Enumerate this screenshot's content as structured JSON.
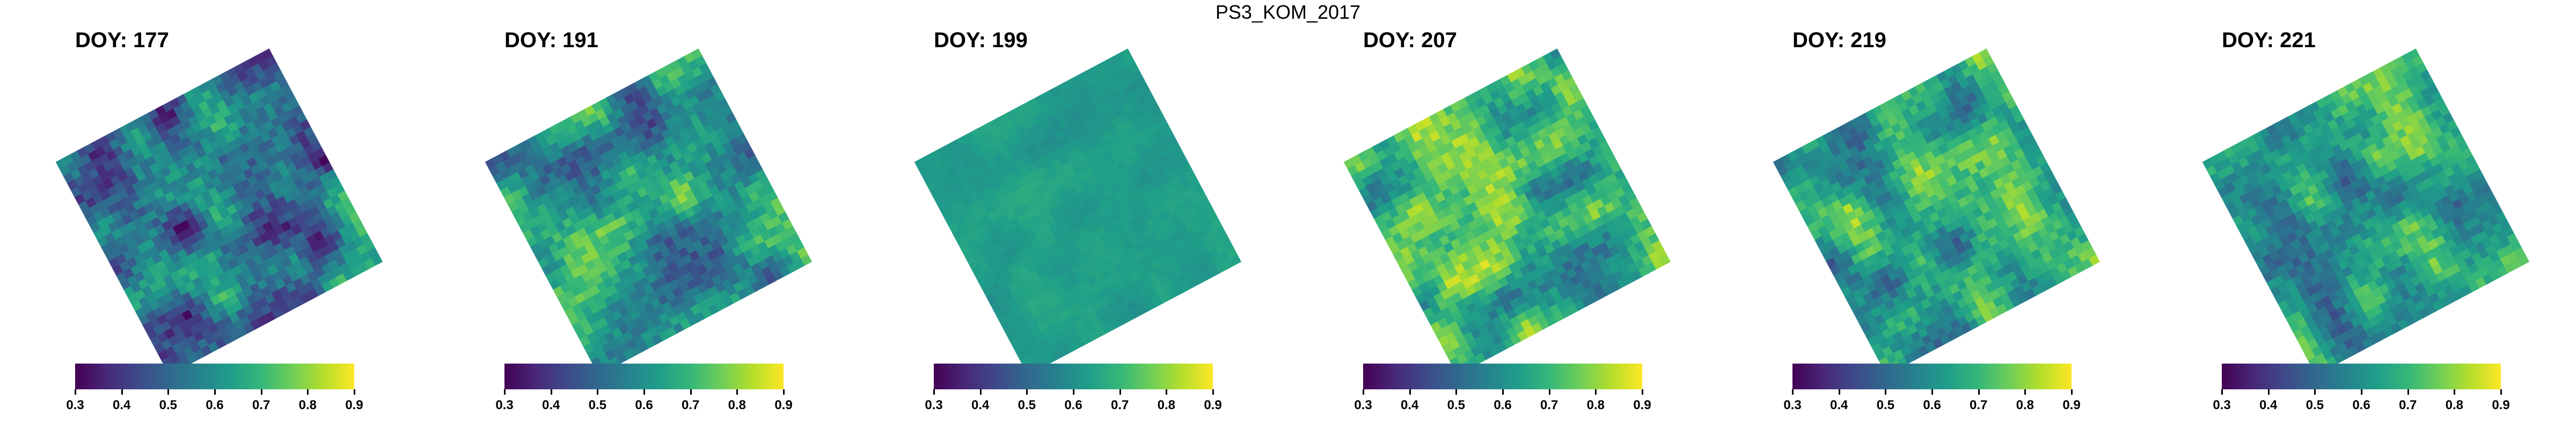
{
  "title": "PS3_KOM_2017",
  "colorbar": {
    "palette": [
      "#440154",
      "#482878",
      "#3e4989",
      "#31688e",
      "#26828e",
      "#1f9e89",
      "#35b779",
      "#6ece58",
      "#b5de2b",
      "#fde725"
    ],
    "range": [
      0.3,
      0.9
    ],
    "ticks": [
      "0.3",
      "0.4",
      "0.5",
      "0.6",
      "0.7",
      "0.8",
      "0.9"
    ]
  },
  "panels": [
    {
      "label": "DOY: 177",
      "mean_value": 0.52,
      "variability": 0.16
    },
    {
      "label": "DOY: 191",
      "mean_value": 0.6,
      "variability": 0.14
    },
    {
      "label": "DOY: 199",
      "mean_value": 0.63,
      "variability": 0.03
    },
    {
      "label": "DOY: 207",
      "mean_value": 0.68,
      "variability": 0.13
    },
    {
      "label": "DOY: 219",
      "mean_value": 0.64,
      "variability": 0.14
    },
    {
      "label": "DOY: 221",
      "mean_value": 0.63,
      "variability": 0.13
    }
  ]
}
